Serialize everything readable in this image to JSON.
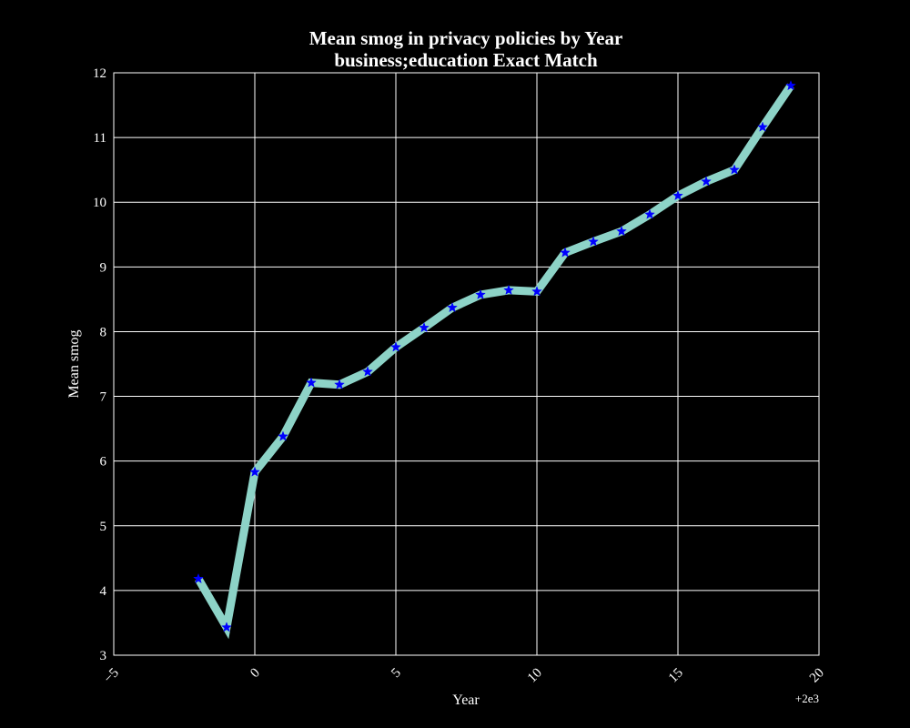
{
  "chart_data": {
    "type": "line",
    "title": "Mean smog in privacy policies by Year",
    "subtitle": "business;education Exact Match",
    "xlabel": "Year",
    "ylabel": "Mean smog",
    "x_offset_label": "+2e3",
    "xlim": [
      1995,
      2020
    ],
    "ylim": [
      3,
      12
    ],
    "x_ticks": [
      1995,
      2000,
      2005,
      2010,
      2015,
      2020
    ],
    "x_tick_labels": [
      "−5",
      "0",
      "5",
      "10",
      "15",
      "20"
    ],
    "y_ticks": [
      3,
      4,
      5,
      6,
      7,
      8,
      9,
      10,
      11,
      12
    ],
    "y_tick_labels": [
      "3",
      "4",
      "5",
      "6",
      "7",
      "8",
      "9",
      "10",
      "11",
      "12"
    ],
    "grid": true,
    "series": [
      {
        "x": [
          1998,
          1999,
          2000,
          2001,
          2002,
          2003,
          2004,
          2005,
          2006,
          2007,
          2008,
          2009,
          2010,
          2011,
          2012,
          2013,
          2014,
          2015,
          2016,
          2017,
          2018,
          2019
        ],
        "values": [
          4.18,
          3.43,
          5.83,
          6.38,
          7.21,
          7.18,
          7.38,
          7.76,
          8.06,
          8.37,
          8.57,
          8.64,
          8.62,
          9.22,
          9.39,
          9.55,
          9.81,
          10.1,
          10.32,
          10.5,
          11.16,
          11.8
        ],
        "line_color": "#8dd3c7",
        "marker_color": "#0000ff",
        "marker": "star"
      }
    ]
  },
  "colors": {
    "background": "#000000",
    "foreground": "#ffffff",
    "grid": "#ffffff"
  }
}
